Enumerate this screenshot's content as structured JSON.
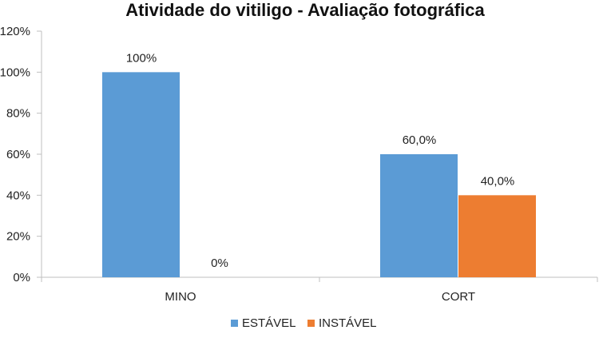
{
  "chart_data": {
    "type": "bar",
    "title": "Atividade do vitiligo - Avaliação fotográfica",
    "categories": [
      "MINO",
      "CORT"
    ],
    "series": [
      {
        "name": "ESTÁVEL",
        "values": [
          100,
          60
        ],
        "labels": [
          "100%",
          "60,0%"
        ],
        "color": "#5b9bd5"
      },
      {
        "name": "INSTÁVEL",
        "values": [
          0,
          40
        ],
        "labels": [
          "0%",
          "40,0%"
        ],
        "color": "#ed7d31"
      }
    ],
    "ylim": [
      0,
      120
    ],
    "yticks": [
      0,
      20,
      40,
      60,
      80,
      100,
      120
    ],
    "ytick_labels": [
      "0%",
      "20%",
      "40%",
      "60%",
      "80%",
      "100%",
      "120%"
    ],
    "legend_position": "bottom",
    "grid": false
  }
}
